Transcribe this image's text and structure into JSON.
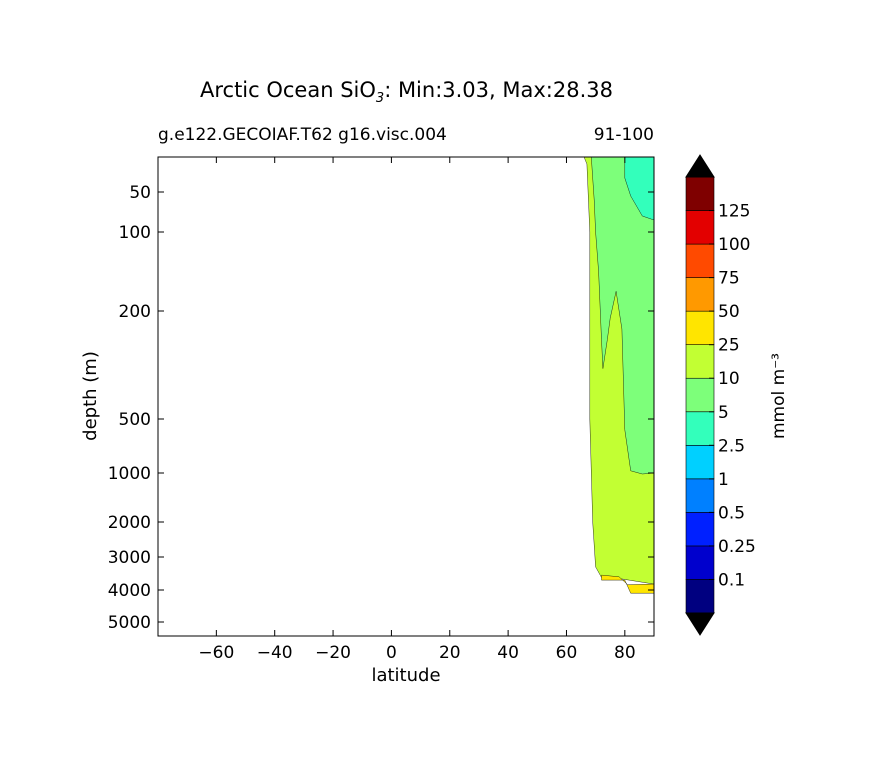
{
  "chart_data": {
    "type": "heatmap",
    "title_prefix": "Arctic Ocean SiO",
    "title_sub": "3",
    "title_suffix": ": Min:3.03, Max:28.38",
    "subtitle_left": "g.e122.GECOIAF.T62 g16.visc.004",
    "subtitle_right": "91-100",
    "xlabel": "latitude",
    "ylabel": "depth (m)",
    "x_ticks": [
      -60,
      -40,
      -20,
      0,
      20,
      40,
      60,
      80
    ],
    "x_tick_labels": [
      "−60",
      "−40",
      "−20",
      "0",
      "20",
      "40",
      "60",
      "80"
    ],
    "xlim": [
      -80,
      90
    ],
    "y_ticks": [
      50,
      100,
      200,
      500,
      1000,
      2000,
      3000,
      4000,
      5000
    ],
    "y_tick_labels": [
      "50",
      "100",
      "200",
      "500",
      "1000",
      "2000",
      "3000",
      "4000",
      "5000"
    ],
    "y_scale": "nonlinear depth (inverted)",
    "colorbar": {
      "label": "mmol m⁻³",
      "levels": [
        "0.1",
        "0.25",
        "0.5",
        "1",
        "2.5",
        "5",
        "10",
        "25",
        "50",
        "75",
        "100",
        "125"
      ],
      "colors": [
        "#000080",
        "#0000cd",
        "#0020ff",
        "#0080ff",
        "#00d0ff",
        "#33ffbb",
        "#7dff7a",
        "#c2ff33",
        "#ffe500",
        "#ff9900",
        "#ff4a00",
        "#e30000",
        "#7f0000"
      ],
      "extend": "both",
      "extend_color": "#000000"
    },
    "regions": [
      {
        "range": "5-10",
        "lat": [
          68,
          90
        ],
        "depth": [
          0,
          1050
        ]
      },
      {
        "range": "2.5-5",
        "lat": [
          80,
          90
        ],
        "depth": [
          0,
          85
        ]
      },
      {
        "range": "10-25",
        "lat": [
          66,
          90
        ],
        "depth": [
          0,
          3700
        ]
      },
      {
        "range": "25-50",
        "lat": [
          72,
          90
        ],
        "depth": [
          3550,
          4100
        ]
      }
    ]
  }
}
